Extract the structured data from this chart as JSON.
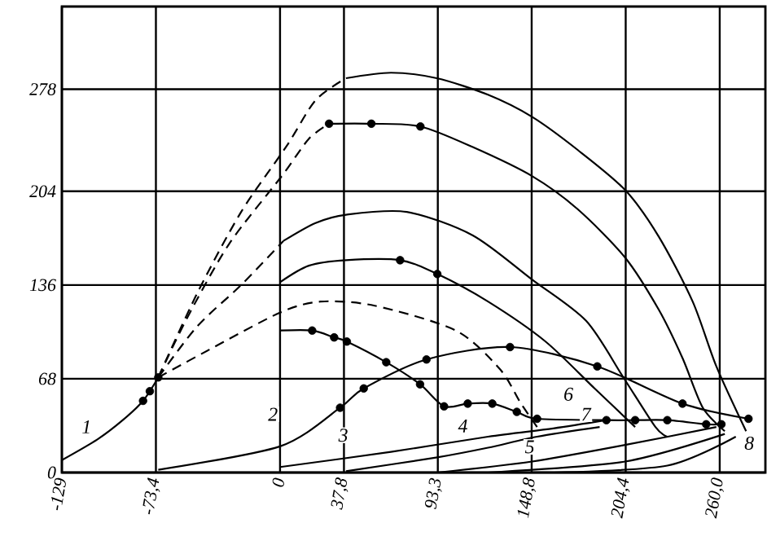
{
  "chart_data": {
    "type": "line",
    "grid": true,
    "marker": "none",
    "xlim": [
      -129,
      287
    ],
    "ylim": [
      0,
      338
    ],
    "xticks": [
      {
        "value": -129,
        "label": "-129"
      },
      {
        "value": -73.4,
        "label": "-73,4"
      },
      0,
      {
        "value": 37.8,
        "label": "37,8"
      },
      {
        "value": 93.3,
        "label": "93,3"
      },
      {
        "value": 148.8,
        "label": "148,8"
      },
      {
        "value": 204.4,
        "label": "204,4"
      },
      {
        "value": 260,
        "label": "260,0"
      }
    ],
    "yticks": [
      0,
      68,
      136,
      204,
      278
    ],
    "series": [
      {
        "type": "line",
        "color": "#000000",
        "line_style": "dashed",
        "x": [
          -72,
          -49,
          -23,
          4,
          21,
          39
        ],
        "values": [
          69,
          130,
          189,
          237,
          270,
          286
        ]
      },
      {
        "type": "line",
        "color": "#000000",
        "line_style": "solid",
        "x": [
          39,
          65.6,
          92.7,
          123,
          149,
          176,
          204,
          224,
          244,
          258,
          275.6
        ],
        "values": [
          286,
          290,
          286,
          274,
          258,
          234,
          205,
          171,
          124,
          77,
          30
        ]
      },
      {
        "type": "line",
        "color": "#000000",
        "line_style": "dashed",
        "x": [
          -72,
          -55,
          -30,
          1,
          17,
          29
        ],
        "values": [
          69,
          112,
          166,
          215,
          242,
          253
        ]
      },
      {
        "type": "line",
        "color": "#000000",
        "line_style": "solid",
        "x": [
          29,
          54,
          83,
          114,
          149,
          176,
          204,
          224,
          238,
          250,
          263
        ],
        "values": [
          253,
          253,
          251,
          236,
          215,
          191,
          156,
          118,
          83,
          47,
          30
        ]
      },
      {
        "type": "line",
        "color": "#000000",
        "line_style": "dashed",
        "x": [
          -72,
          -49,
          -23,
          2
        ],
        "values": [
          69,
          106,
          136,
          168
        ]
      },
      {
        "type": "line",
        "color": "#000000",
        "line_style": "solid",
        "x": [
          2,
          21,
          39,
          75,
          114,
          149,
          181,
          203,
          222,
          229
        ],
        "values": [
          168,
          181,
          187,
          189,
          172,
          140,
          110,
          69,
          33,
          26
        ]
      },
      {
        "type": "line",
        "color": "#000000",
        "line_style": "solid",
        "x": [
          0,
          17,
          39,
          71,
          93,
          123,
          157,
          186,
          210
        ],
        "values": [
          138,
          150,
          154,
          154,
          144,
          124,
          95,
          61,
          33
        ]
      },
      {
        "type": "line",
        "color": "#000000",
        "line_style": "dashed",
        "x": [
          -72,
          -42,
          0,
          24,
          56,
          104,
          130,
          142,
          152
        ],
        "values": [
          69,
          89,
          116,
          124,
          121,
          103,
          75,
          51,
          33
        ]
      },
      {
        "type": "line",
        "color": "#000000",
        "line_style": "solid",
        "x": [
          0,
          19,
          32,
          39.5,
          62.8,
          82.8,
          97,
          111,
          125.5,
          140,
          152,
          193,
          210,
          229,
          252,
          261
        ],
        "values": [
          103,
          103,
          98,
          95,
          80,
          64,
          48,
          50,
          50,
          44,
          39,
          38,
          38,
          38,
          35,
          35
        ]
      },
      {
        "type": "line",
        "color": "#000000",
        "line_style": "solid",
        "x": [
          -129,
          -108,
          -93,
          -81,
          -72
        ],
        "values": [
          9,
          24,
          38,
          52,
          69
        ]
      },
      {
        "type": "line",
        "color": "#000000",
        "line_style": "solid",
        "x": [
          -72,
          0,
          35.5,
          49.5,
          86.6,
          136,
          187.6,
          238,
          277
        ],
        "values": [
          2,
          19,
          47,
          61,
          82,
          91,
          77,
          50,
          39
        ]
      },
      {
        "type": "line",
        "color": "#000000",
        "line_style": "solid",
        "x": [
          0,
          65.6,
          123,
          161.6,
          193
        ],
        "values": [
          4,
          15,
          26,
          32,
          38
        ]
      },
      {
        "type": "line",
        "color": "#000000",
        "line_style": "solid",
        "x": [
          39,
          93,
          123,
          152,
          189
        ],
        "values": [
          1,
          11,
          18,
          26,
          33
        ]
      },
      {
        "type": "line",
        "color": "#000000",
        "line_style": "solid",
        "x": [
          93,
          149,
          204,
          258
        ],
        "values": [
          0,
          8,
          20,
          33
        ]
      },
      {
        "type": "line",
        "color": "#000000",
        "line_style": "solid",
        "x": [
          123,
          204,
          263
        ],
        "values": [
          0,
          8,
          28
        ]
      },
      {
        "type": "line",
        "color": "#000000",
        "line_style": "solid",
        "x": [
          162,
          229,
          269.5
        ],
        "values": [
          0,
          5,
          26
        ]
      },
      {
        "type": "scatter",
        "color": "#000000",
        "marker": "circle",
        "x": [
          -81,
          -77,
          -72,
          29,
          54,
          83,
          71,
          93,
          19,
          32,
          39.5,
          62.8,
          82.8,
          97,
          111,
          125.5,
          140,
          152,
          193,
          210,
          229,
          252,
          261,
          35.5,
          49.5,
          86.6,
          136,
          187.6,
          238,
          277
        ],
        "values": [
          52,
          59,
          69,
          253,
          253,
          251,
          154,
          144,
          103,
          98,
          95,
          80,
          64,
          48,
          50,
          50,
          44,
          39,
          38,
          38,
          38,
          35,
          35,
          47,
          61,
          82,
          91,
          77,
          50,
          39
        ]
      }
    ],
    "annotations": [
      "1",
      "2",
      "3",
      "4",
      "5",
      "6",
      "7",
      "8"
    ]
  }
}
